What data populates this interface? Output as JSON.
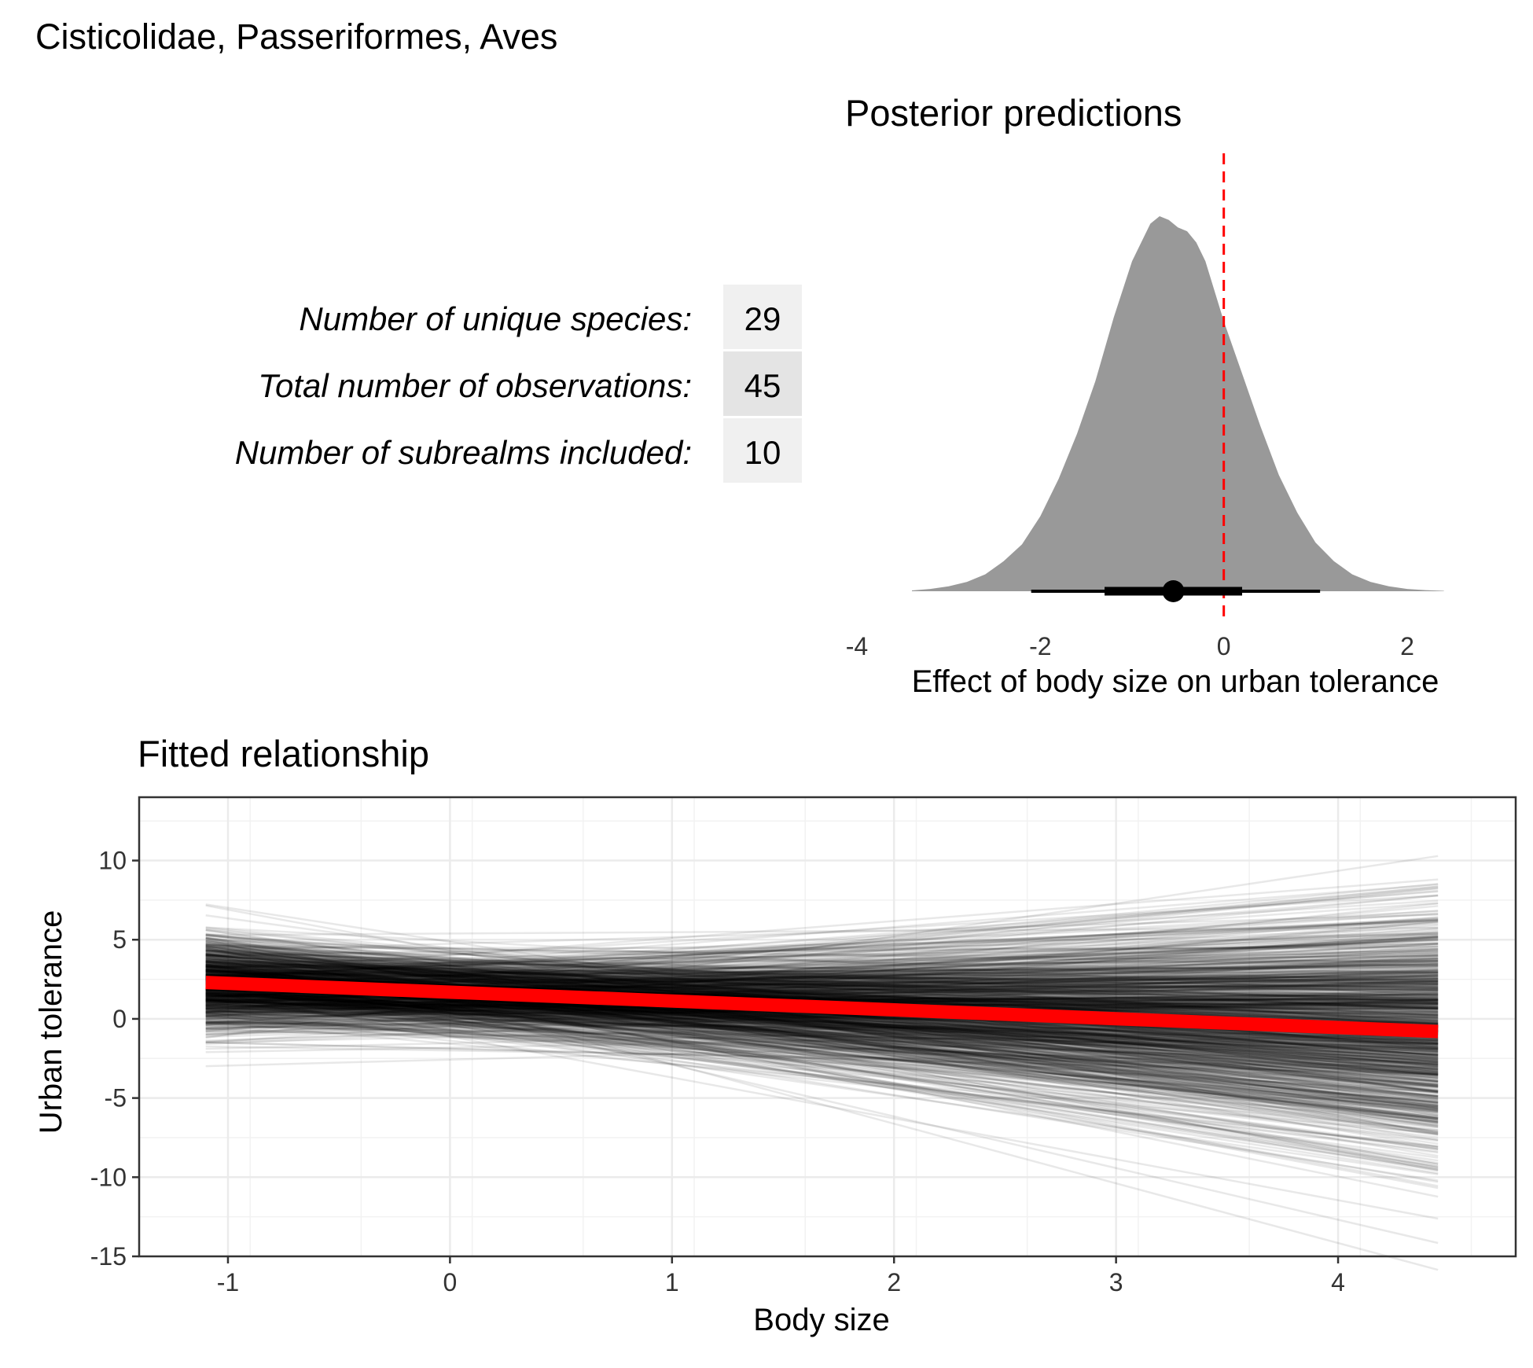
{
  "page": {
    "title": "Cisticolidae, Passeriformes, Aves"
  },
  "stats_table": {
    "rows": [
      {
        "label": "Number of unique species:",
        "value": "29",
        "fill": "#f0f0f0"
      },
      {
        "label": "Total number of observations:",
        "value": "45",
        "fill": "#e4e4e4"
      },
      {
        "label": "Number of subrealms included:",
        "value": "10",
        "fill": "#f0f0f0"
      }
    ]
  },
  "chart_data": [
    {
      "type": "area",
      "title": "Posterior predictions",
      "xlabel": "Effect of body size on urban tolerance",
      "ylabel": "",
      "xlim": [
        -4,
        2.6
      ],
      "xticks": [
        -4,
        -2,
        0,
        2
      ],
      "xtick_labels": [
        "-4",
        "-2",
        "0",
        "2"
      ],
      "fill_color": "#999999",
      "density": {
        "x": [
          -3.4,
          -3.2,
          -3.0,
          -2.8,
          -2.6,
          -2.4,
          -2.2,
          -2.0,
          -1.8,
          -1.6,
          -1.4,
          -1.2,
          -1.0,
          -0.8,
          -0.7,
          -0.6,
          -0.5,
          -0.4,
          -0.3,
          -0.2,
          0.0,
          0.2,
          0.4,
          0.6,
          0.8,
          1.0,
          1.2,
          1.4,
          1.6,
          1.8,
          2.0,
          2.2,
          2.4
        ],
        "y": [
          0.002,
          0.006,
          0.013,
          0.025,
          0.045,
          0.08,
          0.125,
          0.2,
          0.3,
          0.42,
          0.56,
          0.73,
          0.88,
          0.98,
          1.0,
          0.99,
          0.97,
          0.96,
          0.93,
          0.88,
          0.72,
          0.58,
          0.44,
          0.31,
          0.21,
          0.13,
          0.08,
          0.045,
          0.025,
          0.013,
          0.006,
          0.003,
          0.001
        ]
      },
      "point_estimate": -0.55,
      "interval_66": [
        -1.3,
        0.2
      ],
      "interval_95": [
        -2.1,
        1.05
      ],
      "reference_line": {
        "x": 0,
        "color": "#ff0000",
        "style": "dashed"
      }
    },
    {
      "type": "line",
      "title": "Fitted relationship",
      "xlabel": "Body size",
      "ylabel": "Urban tolerance",
      "xlim": [
        -1.4,
        4.8
      ],
      "ylim": [
        -15,
        14
      ],
      "xticks": [
        -1,
        0,
        1,
        2,
        3,
        4
      ],
      "xtick_labels": [
        "-1",
        "0",
        "1",
        "2",
        "3",
        "4"
      ],
      "yticks": [
        -15,
        -10,
        -5,
        0,
        5,
        10
      ],
      "ytick_labels": [
        "-15",
        "-10",
        "-5",
        "0",
        "5",
        "10"
      ],
      "grid": true,
      "x_range": [
        -1.1,
        4.45
      ],
      "posterior_draws": {
        "count": 1000,
        "intercept_mean": 1.6,
        "intercept_sd": 1.2,
        "slope_mean": -0.55,
        "slope_sd": 0.8,
        "color": "#000000"
      },
      "mean_line": {
        "x": [
          -1.1,
          4.45
        ],
        "y": [
          2.3,
          -0.8
        ],
        "color": "#ff0000"
      }
    }
  ]
}
